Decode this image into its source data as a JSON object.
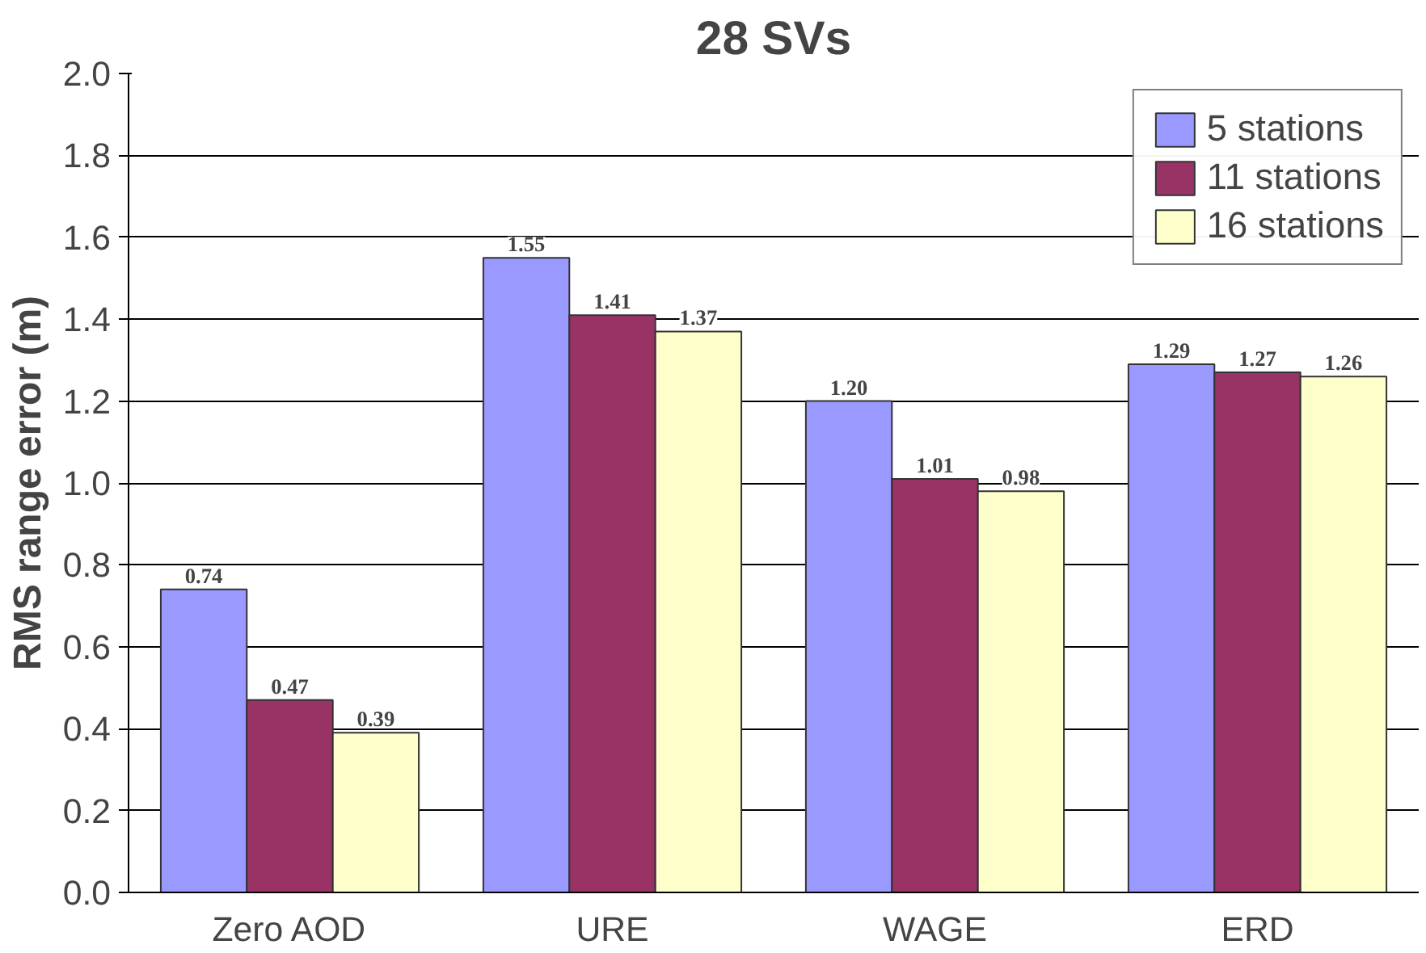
{
  "chart_data": {
    "type": "bar",
    "title": "28 SVs",
    "ylabel": "RMS range error (m)",
    "categories": [
      "Zero AOD",
      "URE",
      "WAGE",
      "ERD"
    ],
    "series": [
      {
        "name": "5 stations",
        "color": "#9999ff",
        "values": [
          0.74,
          1.55,
          1.2,
          1.29
        ],
        "value_labels": [
          "0.74",
          "1.55",
          "1.20",
          "1.29"
        ]
      },
      {
        "name": "11 stations",
        "color": "#993366",
        "values": [
          0.47,
          1.41,
          1.01,
          1.27
        ],
        "value_labels": [
          "0.47",
          "1.41",
          "1.01",
          "1.27"
        ]
      },
      {
        "name": "16 stations",
        "color": "#ffffcc",
        "values": [
          0.39,
          1.37,
          0.98,
          1.26
        ],
        "value_labels": [
          "0.39",
          "1.37",
          "0.98",
          "1.26"
        ]
      }
    ],
    "ylim": [
      0,
      2
    ],
    "yticks": [
      {
        "value": 0,
        "label": "0.0"
      },
      {
        "value": 0.2,
        "label": "0.2"
      },
      {
        "value": 0.4,
        "label": "0.4"
      },
      {
        "value": 0.6,
        "label": "0.6"
      },
      {
        "value": 0.8,
        "label": "0.8"
      },
      {
        "value": 1,
        "label": "1.0"
      },
      {
        "value": 1.2,
        "label": "1.2"
      },
      {
        "value": 1.4,
        "label": "1.4"
      },
      {
        "value": 1.6,
        "label": "1.6"
      },
      {
        "value": 1.8,
        "label": "1.8"
      },
      {
        "value": 2,
        "label": "2.0"
      }
    ],
    "grid": "y",
    "legend": "top right"
  }
}
